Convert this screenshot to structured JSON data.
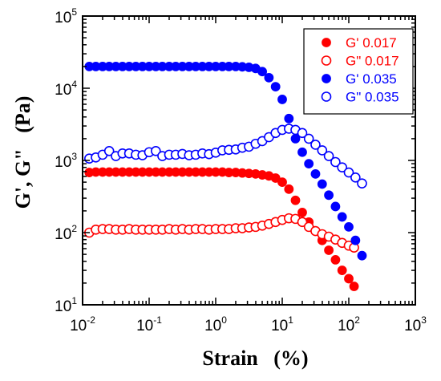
{
  "chart_data": {
    "type": "scatter",
    "xlabel": "Strain   (%)",
    "ylabel": "G', G\"   (Pa)",
    "xscale": "log",
    "yscale": "log",
    "xlim": [
      0.01,
      1000
    ],
    "ylim": [
      10,
      100000
    ],
    "x_ticks": [
      {
        "base": "10",
        "exp": "-2"
      },
      {
        "base": "10",
        "exp": "-1"
      },
      {
        "base": "10",
        "exp": "0"
      },
      {
        "base": "10",
        "exp": "1"
      },
      {
        "base": "10",
        "exp": "2"
      },
      {
        "base": "10",
        "exp": "3"
      }
    ],
    "y_ticks": [
      {
        "base": "10",
        "exp": "1"
      },
      {
        "base": "10",
        "exp": "2"
      },
      {
        "base": "10",
        "exp": "3"
      },
      {
        "base": "10",
        "exp": "4"
      },
      {
        "base": "10",
        "exp": "5"
      }
    ],
    "grid": false,
    "legend_position": "top-right",
    "series": [
      {
        "name": "G' 0.017",
        "color": "#ff0000",
        "marker": "filled-circle",
        "x": [
          0.0126,
          0.0158,
          0.02,
          0.0251,
          0.0316,
          0.0398,
          0.0501,
          0.0631,
          0.0794,
          0.1,
          0.126,
          0.158,
          0.2,
          0.251,
          0.316,
          0.398,
          0.501,
          0.631,
          0.794,
          1.0,
          1.26,
          1.58,
          2.0,
          2.51,
          3.16,
          3.98,
          5.01,
          6.31,
          7.94,
          10.0,
          12.6,
          15.8,
          20.0,
          25.1,
          31.6,
          39.8,
          50.1,
          63.1,
          79.4,
          100,
          120
        ],
        "y": [
          680,
          690,
          690,
          690,
          690,
          690,
          690,
          690,
          690,
          690,
          690,
          690,
          690,
          690,
          690,
          690,
          690,
          690,
          690,
          690,
          690,
          680,
          680,
          670,
          660,
          650,
          630,
          610,
          570,
          500,
          400,
          280,
          190,
          140,
          105,
          78,
          57,
          42,
          30,
          23,
          18
        ]
      },
      {
        "name": "G\" 0.017",
        "color": "#ff0000",
        "marker": "open-circle",
        "x": [
          0.0126,
          0.0158,
          0.02,
          0.0251,
          0.0316,
          0.0398,
          0.0501,
          0.0631,
          0.0794,
          0.1,
          0.126,
          0.158,
          0.2,
          0.251,
          0.316,
          0.398,
          0.501,
          0.631,
          0.794,
          1.0,
          1.26,
          1.58,
          2.0,
          2.51,
          3.16,
          3.98,
          5.01,
          6.31,
          7.94,
          10.0,
          12.6,
          15.8,
          20.0,
          25.1,
          31.6,
          39.8,
          50.1,
          63.1,
          79.4,
          100,
          120
        ],
        "y": [
          100,
          110,
          112,
          112,
          110,
          110,
          112,
          110,
          110,
          110,
          110,
          110,
          112,
          110,
          112,
          110,
          112,
          112,
          110,
          112,
          112,
          112,
          115,
          115,
          118,
          120,
          125,
          132,
          140,
          150,
          158,
          155,
          140,
          120,
          105,
          95,
          88,
          80,
          72,
          66,
          62
        ]
      },
      {
        "name": "G' 0.035",
        "color": "#0000ff",
        "marker": "filled-circle",
        "x": [
          0.0126,
          0.0158,
          0.02,
          0.0251,
          0.0316,
          0.0398,
          0.0501,
          0.0631,
          0.0794,
          0.1,
          0.126,
          0.158,
          0.2,
          0.251,
          0.316,
          0.398,
          0.501,
          0.631,
          0.794,
          1.0,
          1.26,
          1.58,
          2.0,
          2.51,
          3.16,
          3.98,
          5.01,
          6.31,
          7.94,
          10.0,
          12.6,
          15.8,
          20.0,
          25.1,
          31.6,
          39.8,
          50.1,
          63.1,
          79.4,
          100,
          126,
          158
        ],
        "y": [
          20000,
          20000,
          20000,
          20000,
          20000,
          20000,
          20000,
          20000,
          20000,
          20000,
          20000,
          20000,
          20000,
          20000,
          20000,
          20000,
          20000,
          20000,
          20000,
          20000,
          20000,
          20000,
          20000,
          19800,
          19500,
          18800,
          17000,
          14000,
          10500,
          7000,
          3800,
          2000,
          1300,
          900,
          650,
          470,
          330,
          230,
          165,
          120,
          78,
          48
        ]
      },
      {
        "name": "G\" 0.035",
        "color": "#0000ff",
        "marker": "open-circle",
        "x": [
          0.0126,
          0.0158,
          0.02,
          0.0251,
          0.0316,
          0.0398,
          0.0501,
          0.0631,
          0.0794,
          0.1,
          0.126,
          0.158,
          0.2,
          0.251,
          0.316,
          0.398,
          0.501,
          0.631,
          0.794,
          1.0,
          1.26,
          1.58,
          2.0,
          2.51,
          3.16,
          3.98,
          5.01,
          6.31,
          7.94,
          10.0,
          12.6,
          15.8,
          20.0,
          25.1,
          31.6,
          39.8,
          50.1,
          63.1,
          79.4,
          100,
          126,
          158
        ],
        "y": [
          1060,
          1100,
          1200,
          1350,
          1150,
          1250,
          1250,
          1200,
          1180,
          1300,
          1350,
          1150,
          1200,
          1200,
          1230,
          1180,
          1200,
          1250,
          1220,
          1280,
          1380,
          1400,
          1420,
          1500,
          1550,
          1700,
          1850,
          2100,
          2400,
          2650,
          2750,
          2650,
          2400,
          2000,
          1650,
          1380,
          1150,
          950,
          800,
          680,
          580,
          480
        ]
      }
    ]
  }
}
